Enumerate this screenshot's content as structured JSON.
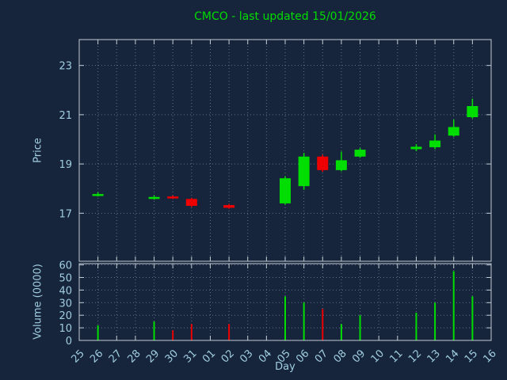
{
  "colors": {
    "background": "#16253c",
    "title": "#00dd00",
    "axis_text": "#a0cde0",
    "border": "#c2ccd4",
    "grid": "#5f7188",
    "up": "#00dd00",
    "down": "#ee0000"
  },
  "chart_data": {
    "type": "candlestick",
    "title": "CMCO - last updated 15/01/2026",
    "xlabel": "Day",
    "price_ylabel": "Price",
    "volume_ylabel": "Volume (0000)",
    "x_ticks": [
      "25",
      "26",
      "27",
      "28",
      "29",
      "30",
      "31",
      "01",
      "02",
      "03",
      "04",
      "05",
      "06",
      "07",
      "08",
      "09",
      "10",
      "11",
      "12",
      "13",
      "14",
      "15",
      "16"
    ],
    "price_ticks": [
      17,
      19,
      21,
      23
    ],
    "price_range": [
      15.05,
      24.05
    ],
    "volume_ticks": [
      0,
      10,
      20,
      30,
      40,
      50,
      60
    ],
    "volume_range": [
      0,
      61
    ],
    "grid": "dotted",
    "candles": [
      {
        "day": "26",
        "open": 17.75,
        "high": 17.85,
        "low": 17.68,
        "close": 17.78,
        "volume": 12
      },
      {
        "day": "29",
        "open": 17.6,
        "high": 17.72,
        "low": 17.55,
        "close": 17.66,
        "volume": 15
      },
      {
        "day": "30",
        "open": 17.68,
        "high": 17.72,
        "low": 17.58,
        "close": 17.62,
        "volume": 8
      },
      {
        "day": "31",
        "open": 17.58,
        "high": 17.62,
        "low": 17.25,
        "close": 17.3,
        "volume": 13
      },
      {
        "day": "02",
        "open": 17.33,
        "high": 17.38,
        "low": 17.18,
        "close": 17.22,
        "volume": 13
      },
      {
        "day": "05",
        "open": 17.4,
        "high": 18.5,
        "low": 17.35,
        "close": 18.42,
        "volume": 35
      },
      {
        "day": "06",
        "open": 18.1,
        "high": 19.45,
        "low": 17.95,
        "close": 19.3,
        "volume": 30
      },
      {
        "day": "07",
        "open": 19.3,
        "high": 19.38,
        "low": 18.68,
        "close": 18.75,
        "volume": 25
      },
      {
        "day": "08",
        "open": 18.75,
        "high": 19.5,
        "low": 18.7,
        "close": 19.15,
        "volume": 13
      },
      {
        "day": "09",
        "open": 19.3,
        "high": 19.65,
        "low": 19.25,
        "close": 19.58,
        "volume": 20
      },
      {
        "day": "12",
        "open": 19.6,
        "high": 19.8,
        "low": 19.52,
        "close": 19.7,
        "volume": 22
      },
      {
        "day": "13",
        "open": 19.68,
        "high": 20.2,
        "low": 19.6,
        "close": 19.95,
        "volume": 30
      },
      {
        "day": "14",
        "open": 20.15,
        "high": 20.8,
        "low": 20.1,
        "close": 20.5,
        "volume": 55
      },
      {
        "day": "15",
        "open": 20.9,
        "high": 21.65,
        "low": 20.85,
        "close": 21.35,
        "volume": 35
      }
    ]
  }
}
